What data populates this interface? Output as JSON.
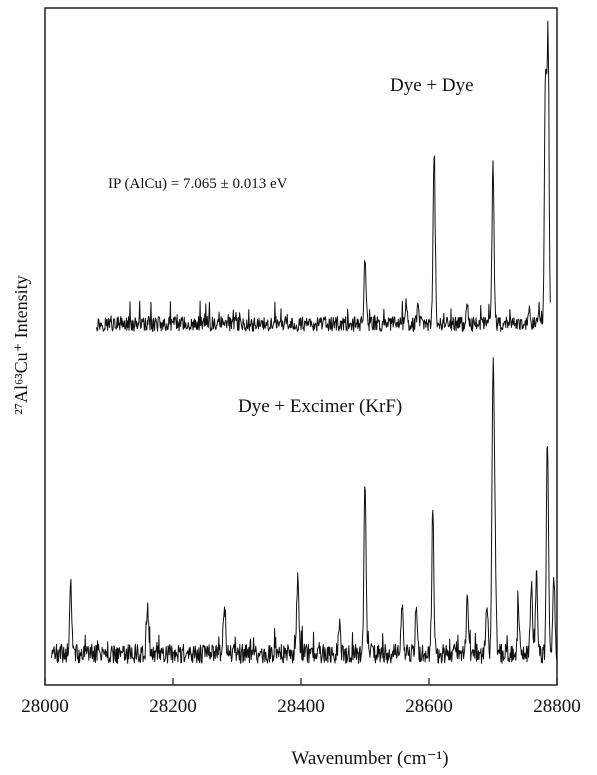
{
  "chart_data": {
    "type": "line",
    "title": "",
    "xlabel": "Wavenumber (cm⁻¹)",
    "ylabel": "²⁷Al⁶³Cu⁺ Intensity",
    "xlim": [
      28000,
      28800
    ],
    "x_ticks": [
      28000,
      28200,
      28400,
      28600,
      28800
    ],
    "x_tick_labels": [
      "28000",
      "28200",
      "28400",
      "28600",
      "28800"
    ],
    "y_ticks": [],
    "grid": false,
    "legend": "none",
    "annotations": [
      {
        "text": "Dye + Dye"
      },
      {
        "text": "IP (AlCu) = 7.065 ± 0.013 eV"
      },
      {
        "text": "Dye + Excimer (KrF)"
      }
    ],
    "series": [
      {
        "name": "Dye + Dye",
        "x_range": [
          28080,
          28790
        ],
        "baseline": 0.03,
        "noise": 0.025,
        "peaks": [
          {
            "x": 28500,
            "height": 0.22
          },
          {
            "x": 28565,
            "height": 0.05
          },
          {
            "x": 28583,
            "height": 0.05
          },
          {
            "x": 28608,
            "height": 0.56
          },
          {
            "x": 28660,
            "height": 0.06
          },
          {
            "x": 28700,
            "height": 0.52
          },
          {
            "x": 28757,
            "height": 0.06
          },
          {
            "x": 28772,
            "height": 0.05
          },
          {
            "x": 28782,
            "height": 0.82
          },
          {
            "x": 28786,
            "height": 0.95
          }
        ]
      },
      {
        "name": "Dye + Excimer (KrF)",
        "x_range": [
          28010,
          28800
        ],
        "baseline": 0.03,
        "noise": 0.035,
        "peaks": [
          {
            "x": 28040,
            "height": 0.25
          },
          {
            "x": 28160,
            "height": 0.18
          },
          {
            "x": 28280,
            "height": 0.15
          },
          {
            "x": 28395,
            "height": 0.3
          },
          {
            "x": 28460,
            "height": 0.12
          },
          {
            "x": 28500,
            "height": 0.64
          },
          {
            "x": 28558,
            "height": 0.18
          },
          {
            "x": 28580,
            "height": 0.16
          },
          {
            "x": 28606,
            "height": 0.5
          },
          {
            "x": 28660,
            "height": 0.22
          },
          {
            "x": 28690,
            "height": 0.18
          },
          {
            "x": 28700,
            "height": 0.98
          },
          {
            "x": 28703,
            "height": 0.42
          },
          {
            "x": 28740,
            "height": 0.16
          },
          {
            "x": 28760,
            "height": 0.25
          },
          {
            "x": 28768,
            "height": 0.28
          },
          {
            "x": 28785,
            "height": 0.78
          },
          {
            "x": 28795,
            "height": 0.3
          }
        ]
      }
    ]
  }
}
